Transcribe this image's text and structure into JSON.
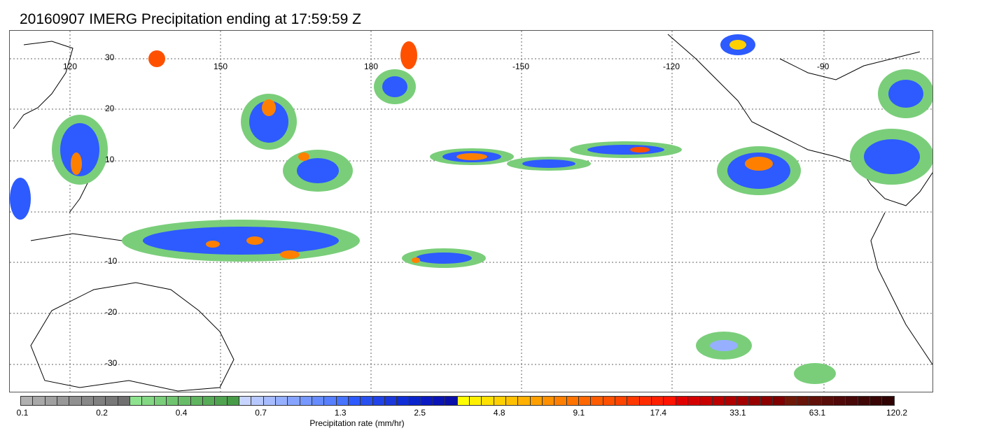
{
  "title": "20160907 IMERG Precipitation ending at 17:59:59 Z",
  "map": {
    "lon_labels": [
      "120",
      "150",
      "180",
      "-150",
      "-120",
      "-90"
    ],
    "lat_labels": [
      "30",
      "20",
      "10",
      "-10",
      "-20",
      "-30"
    ],
    "coast_color": "#000000",
    "grid_color": "#666666",
    "grid_style": "dotted"
  },
  "colorbar": {
    "label": "Precipitation rate (mm/hr)",
    "tick_labels": [
      "0.1",
      "0.2",
      "0.4",
      "0.7",
      "1.3",
      "2.5",
      "4.8",
      "9.1",
      "17.4",
      "33.1",
      "63.1",
      "120.2"
    ],
    "colors": [
      "#b0b0b0",
      "#a8a8a8",
      "#a0a0a0",
      "#989898",
      "#909090",
      "#888888",
      "#808080",
      "#787878",
      "#707070",
      "#8ee28e",
      "#84d884",
      "#7ace7a",
      "#70c470",
      "#68bc68",
      "#60b460",
      "#58ac58",
      "#50a450",
      "#489c48",
      "#c6d4ff",
      "#b6c8ff",
      "#a6bcff",
      "#96b0ff",
      "#86a4ff",
      "#7698ff",
      "#668cff",
      "#5680ff",
      "#4674ff",
      "#2d5bff",
      "#2850f0",
      "#1f43e8",
      "#1a38dc",
      "#0f2ed8",
      "#0a24cc",
      "#0a1ac0",
      "#0a14b4",
      "#0a0fa8",
      "#ffff00",
      "#fff000",
      "#ffe000",
      "#ffd000",
      "#ffc000",
      "#ffb000",
      "#ffa000",
      "#ff9000",
      "#ff8000",
      "#ff7400",
      "#ff6800",
      "#ff5c00",
      "#ff5000",
      "#ff4400",
      "#ff3800",
      "#ff2c00",
      "#ff2000",
      "#ff1400",
      "#e00000",
      "#d40000",
      "#c80000",
      "#bc0000",
      "#b00000",
      "#a40000",
      "#980000",
      "#8c0000",
      "#800000",
      "#701808",
      "#681408",
      "#601008",
      "#580c08",
      "#500808",
      "#480808",
      "#400606",
      "#380404",
      "#300202"
    ]
  }
}
